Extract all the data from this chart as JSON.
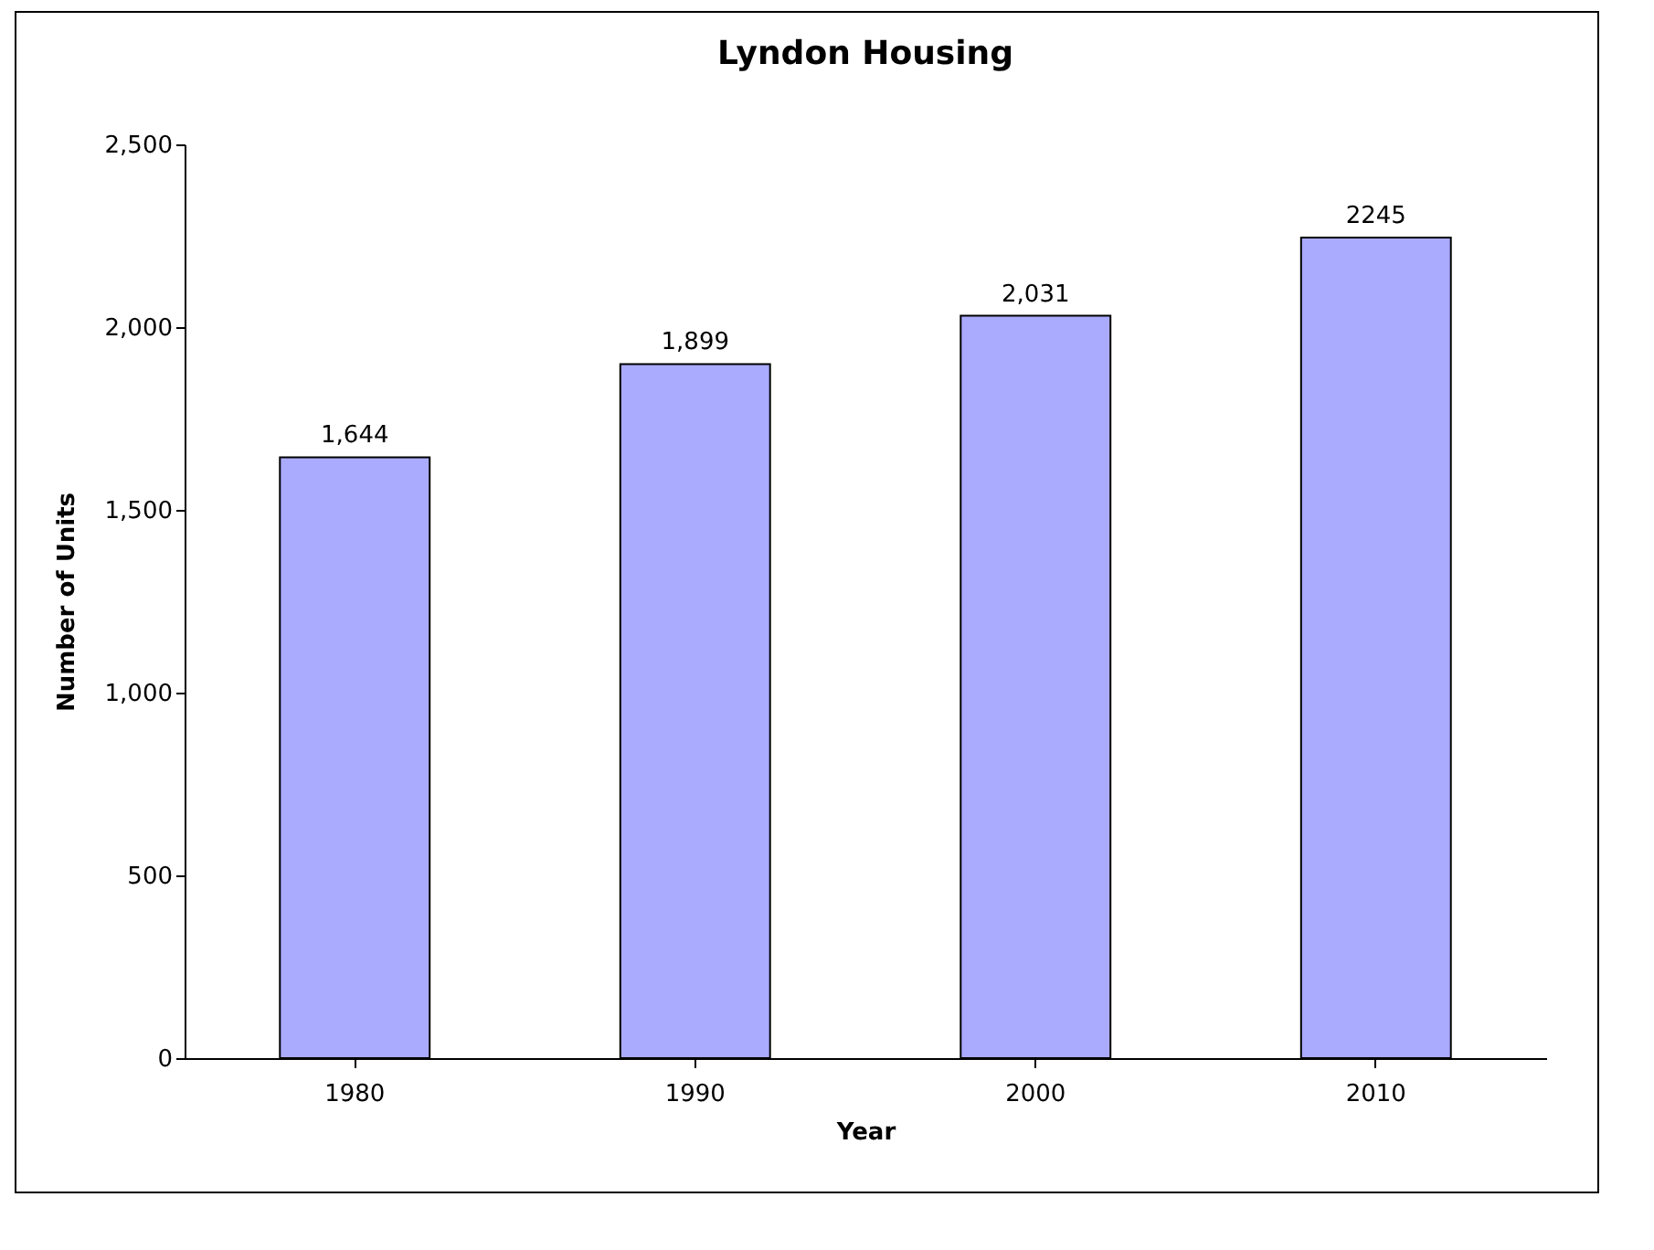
{
  "chart_data": {
    "type": "bar",
    "title": "Lyndon Housing",
    "xlabel": "Year",
    "ylabel": "Number of Units",
    "categories": [
      "1980",
      "1990",
      "2000",
      "2010"
    ],
    "values": [
      1644,
      1899,
      2031,
      2245
    ],
    "value_labels": [
      "1,644",
      "1,899",
      "2,031",
      "2245"
    ],
    "color": "#aaaaff",
    "ylim": [
      0,
      2500
    ],
    "yticks": [
      0,
      500,
      {
        "value": 1000,
        "label": "1,000"
      },
      {
        "value": 1500,
        "label": "1,500"
      },
      {
        "value": 2000,
        "label": "2,000"
      },
      {
        "value": 2500,
        "label": "2,500"
      }
    ],
    "grid": false
  }
}
